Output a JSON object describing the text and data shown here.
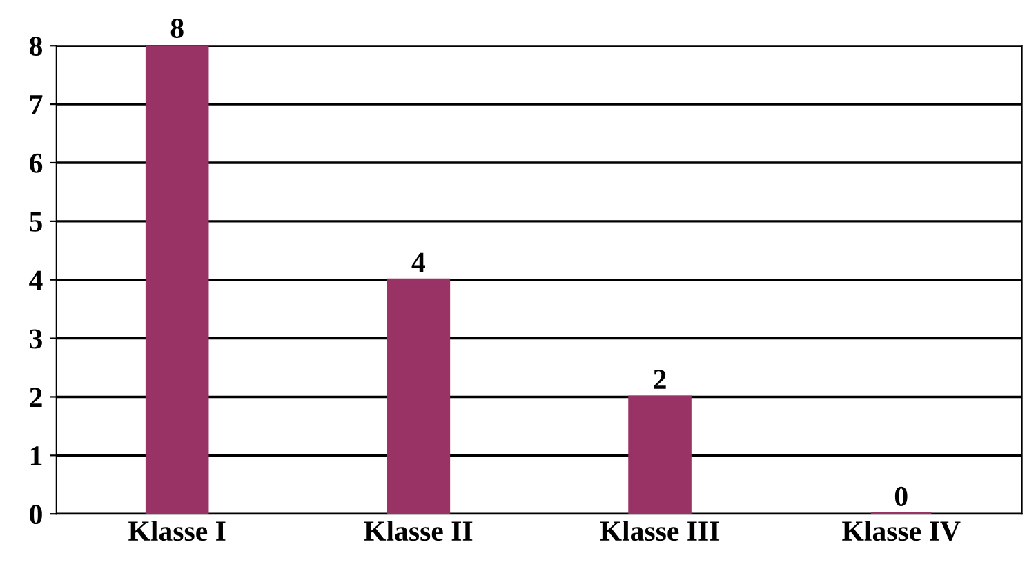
{
  "chart_data": {
    "type": "bar",
    "categories": [
      "Klasse I",
      "Klasse II",
      "Klasse III",
      "Klasse IV"
    ],
    "values": [
      8,
      4,
      2,
      0
    ],
    "color": "#993366",
    "ylim": [
      0,
      8
    ],
    "yticks": [
      0,
      1,
      2,
      3,
      4,
      5,
      6,
      7,
      8
    ],
    "grid": "y",
    "data_labels": true
  }
}
